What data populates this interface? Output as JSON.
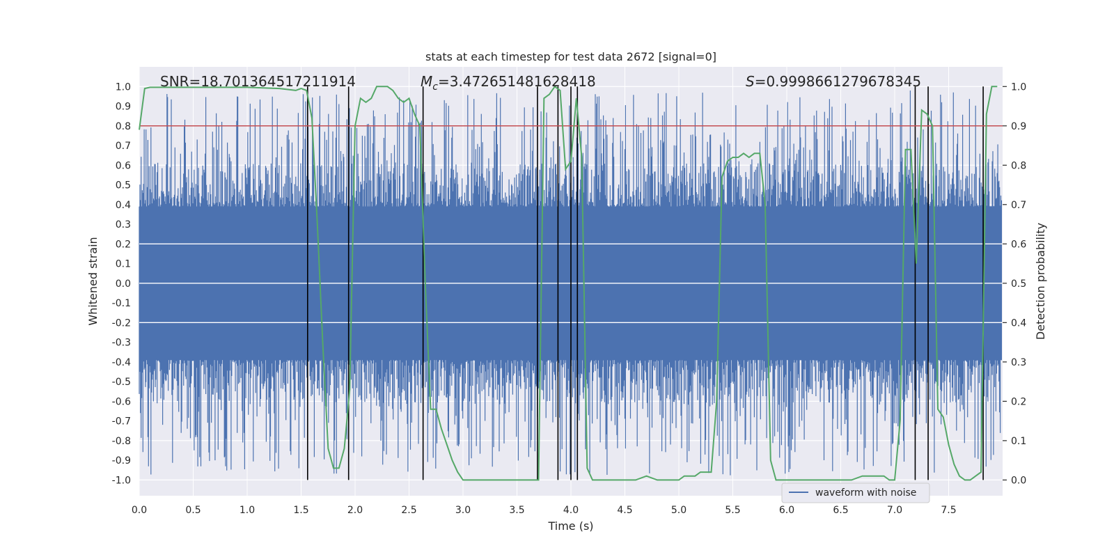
{
  "chart_data": {
    "type": "line",
    "title": "stats at each timestep for test data 2672 [signal=0]",
    "xlabel": "Time (s)",
    "ylabel_left": "Whitened strain",
    "ylabel_right": "Detection probability",
    "xlim": [
      0.0,
      8.0
    ],
    "ylim_left": [
      -1.08,
      1.1
    ],
    "ylim_right": [
      0.0,
      1.0
    ],
    "xticks": [
      "0.0",
      "0.5",
      "1.0",
      "1.5",
      "2.0",
      "2.5",
      "3.0",
      "3.5",
      "4.0",
      "4.5",
      "5.0",
      "5.5",
      "6.0",
      "6.5",
      "7.0",
      "7.5"
    ],
    "xtick_values": [
      0.0,
      0.5,
      1.0,
      1.5,
      2.0,
      2.5,
      3.0,
      3.5,
      4.0,
      4.5,
      5.0,
      5.5,
      6.0,
      6.5,
      7.0,
      7.5
    ],
    "yticks_left": [
      "1.0",
      "0.9",
      "0.8",
      "0.7",
      "0.6",
      "0.5",
      "0.4",
      "0.3",
      "0.2",
      "0.1",
      "0.0",
      "-0.1",
      "-0.2",
      "-0.3",
      "-0.4",
      "-0.5",
      "-0.6",
      "-0.7",
      "-0.8",
      "-0.9",
      "-1.0"
    ],
    "ytick_values_left": [
      1.0,
      0.9,
      0.8,
      0.7,
      0.6,
      0.5,
      0.4,
      0.3,
      0.2,
      0.1,
      0.0,
      -0.1,
      -0.2,
      -0.3,
      -0.4,
      -0.5,
      -0.6,
      -0.7,
      -0.8,
      -0.9,
      -1.0
    ],
    "yticks_right": [
      "1.0",
      "0.9",
      "0.8",
      "0.7",
      "0.6",
      "0.5",
      "0.4",
      "0.3",
      "0.2",
      "0.1",
      "0.0"
    ],
    "ytick_values_right": [
      1.0,
      0.9,
      0.8,
      0.7,
      0.6,
      0.5,
      0.4,
      0.3,
      0.2,
      0.1,
      0.0
    ],
    "annotations": {
      "snr": "SNR=18.701364517211914",
      "mc_symbol": "M",
      "mc_sub": "c",
      "mc_value": "=3.472651481628418",
      "s_symbol": "S",
      "s_value": "=0.9998661279678345"
    },
    "legend": {
      "label": "waveform with noise",
      "position": "lower-right"
    },
    "threshold": {
      "value": 0.9,
      "axis": "right",
      "color": "#c44e52"
    },
    "vertical_lines": [
      1.56,
      1.94,
      2.63,
      3.69,
      3.88,
      4.0,
      4.06,
      7.19,
      7.31,
      7.82
    ],
    "waveform": {
      "name": "waveform with noise",
      "color": "#4c72b0",
      "typical_amplitude": 0.39,
      "peak_amplitude": 0.98,
      "duration": 8.0
    },
    "detection_probability": {
      "name": "detection probability",
      "color": "#55a868",
      "x": [
        0.0,
        0.05,
        0.1,
        0.2,
        0.5,
        1.0,
        1.3,
        1.45,
        1.5,
        1.55,
        1.6,
        1.65,
        1.7,
        1.75,
        1.8,
        1.85,
        1.9,
        1.95,
        2.0,
        2.05,
        2.1,
        2.15,
        2.2,
        2.25,
        2.3,
        2.35,
        2.4,
        2.45,
        2.5,
        2.55,
        2.6,
        2.65,
        2.7,
        2.75,
        2.8,
        2.85,
        2.9,
        2.95,
        3.0,
        3.05,
        3.2,
        3.5,
        3.65,
        3.7,
        3.75,
        3.8,
        3.85,
        3.9,
        3.95,
        4.0,
        4.05,
        4.1,
        4.15,
        4.2,
        4.5,
        4.6,
        4.7,
        4.8,
        4.9,
        5.0,
        5.05,
        5.1,
        5.15,
        5.2,
        5.25,
        5.3,
        5.35,
        5.4,
        5.45,
        5.5,
        5.55,
        5.6,
        5.65,
        5.7,
        5.75,
        5.8,
        5.85,
        5.9,
        6.0,
        6.2,
        6.5,
        6.6,
        6.7,
        6.8,
        6.9,
        6.95,
        7.0,
        7.05,
        7.1,
        7.15,
        7.2,
        7.25,
        7.3,
        7.35,
        7.4,
        7.45,
        7.5,
        7.55,
        7.6,
        7.65,
        7.7,
        7.75,
        7.8,
        7.85,
        7.9,
        7.95
      ],
      "y": [
        0.89,
        0.995,
        0.998,
        0.998,
        0.998,
        0.998,
        0.995,
        0.99,
        0.995,
        0.99,
        0.92,
        0.65,
        0.35,
        0.08,
        0.03,
        0.03,
        0.08,
        0.23,
        0.9,
        0.97,
        0.96,
        0.97,
        1.0,
        1.0,
        1.0,
        0.99,
        0.97,
        0.96,
        0.97,
        0.93,
        0.9,
        0.5,
        0.18,
        0.18,
        0.13,
        0.09,
        0.05,
        0.02,
        0.0,
        0.0,
        0.0,
        0.0,
        0.0,
        0.0,
        0.97,
        0.98,
        1.0,
        0.99,
        0.79,
        0.81,
        0.97,
        0.82,
        0.03,
        0.0,
        0.0,
        0.0,
        0.01,
        0.0,
        0.0,
        0.0,
        0.01,
        0.01,
        0.01,
        0.02,
        0.02,
        0.02,
        0.2,
        0.77,
        0.81,
        0.82,
        0.82,
        0.83,
        0.82,
        0.83,
        0.83,
        0.7,
        0.05,
        0.0,
        0.0,
        0.0,
        0.0,
        0.0,
        0.01,
        0.01,
        0.01,
        0.0,
        0.0,
        0.15,
        0.84,
        0.84,
        0.55,
        0.94,
        0.93,
        0.9,
        0.18,
        0.16,
        0.09,
        0.04,
        0.01,
        0.0,
        0.0,
        0.01,
        0.02,
        0.93,
        1.0,
        1.0
      ]
    }
  }
}
